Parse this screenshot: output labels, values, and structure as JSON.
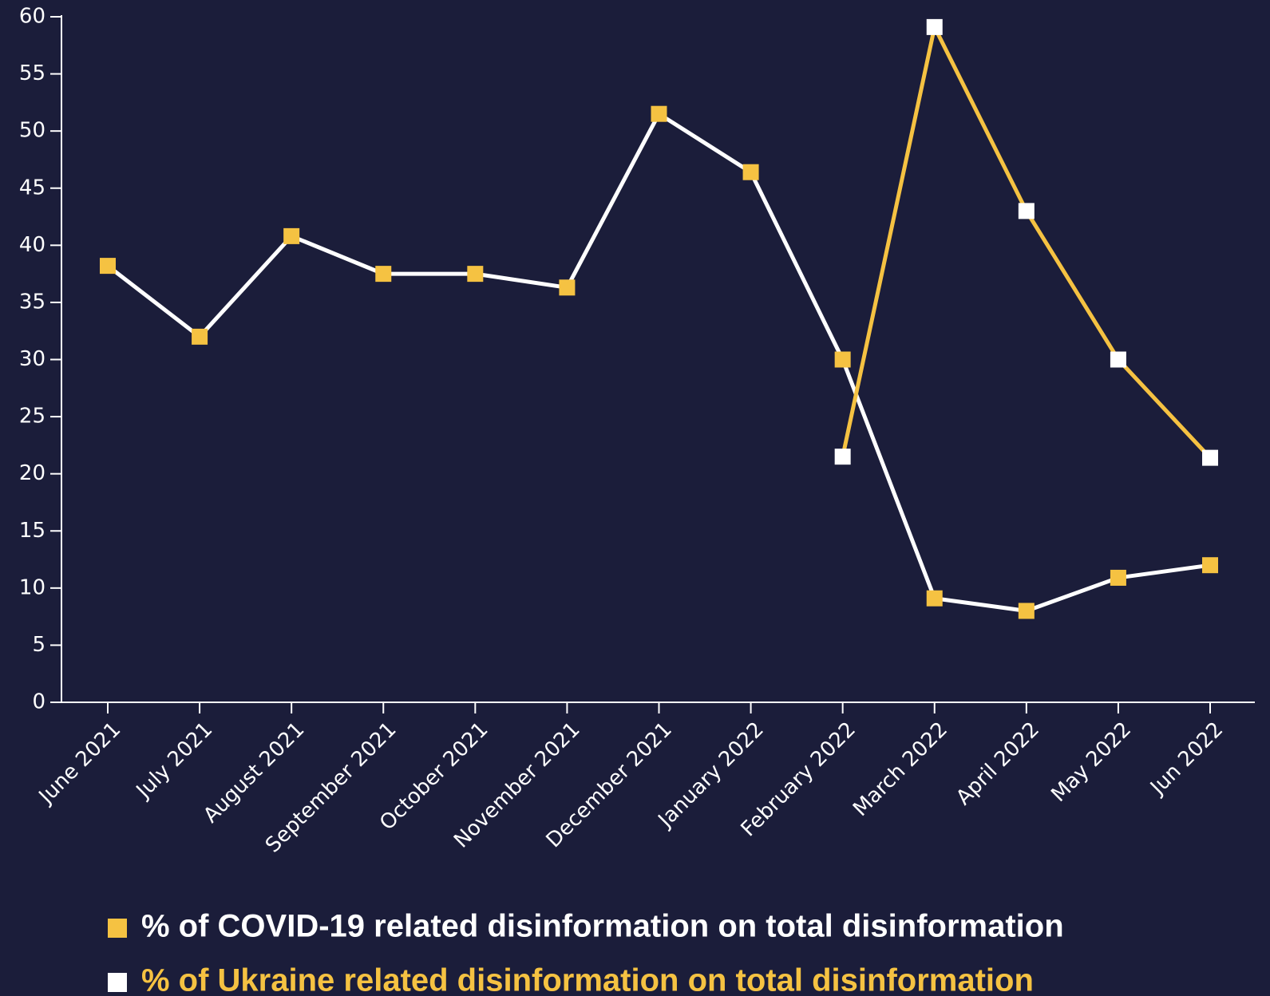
{
  "chart_data": {
    "type": "line",
    "categories": [
      "June 2021",
      "July 2021",
      "August 2021",
      "September 2021",
      "October 2021",
      "November 2021",
      "December 2021",
      "January 2022",
      "February 2022",
      "March 2022",
      "April 2022",
      "May 2022",
      "Jun 2022"
    ],
    "series": [
      {
        "name": "% of COVID-19 related disinformation on total disinformation",
        "color": "#ffffff",
        "marker_color": "#f5c242",
        "values": [
          38.2,
          32,
          40.8,
          37.5,
          37.5,
          36.3,
          51.5,
          46.4,
          30,
          9.1,
          8,
          10.9,
          12
        ]
      },
      {
        "name": "% of Ukraine related disinformation on total disinformation",
        "color": "#f5c242",
        "marker_color": "#ffffff",
        "values": [
          null,
          null,
          null,
          null,
          null,
          null,
          null,
          null,
          21.5,
          59.1,
          43,
          30,
          21.4
        ]
      }
    ],
    "ylim": [
      0,
      60
    ],
    "yticks": [
      0,
      5,
      10,
      15,
      20,
      25,
      30,
      35,
      40,
      45,
      50,
      55,
      60
    ],
    "background": "#1b1d3a"
  }
}
